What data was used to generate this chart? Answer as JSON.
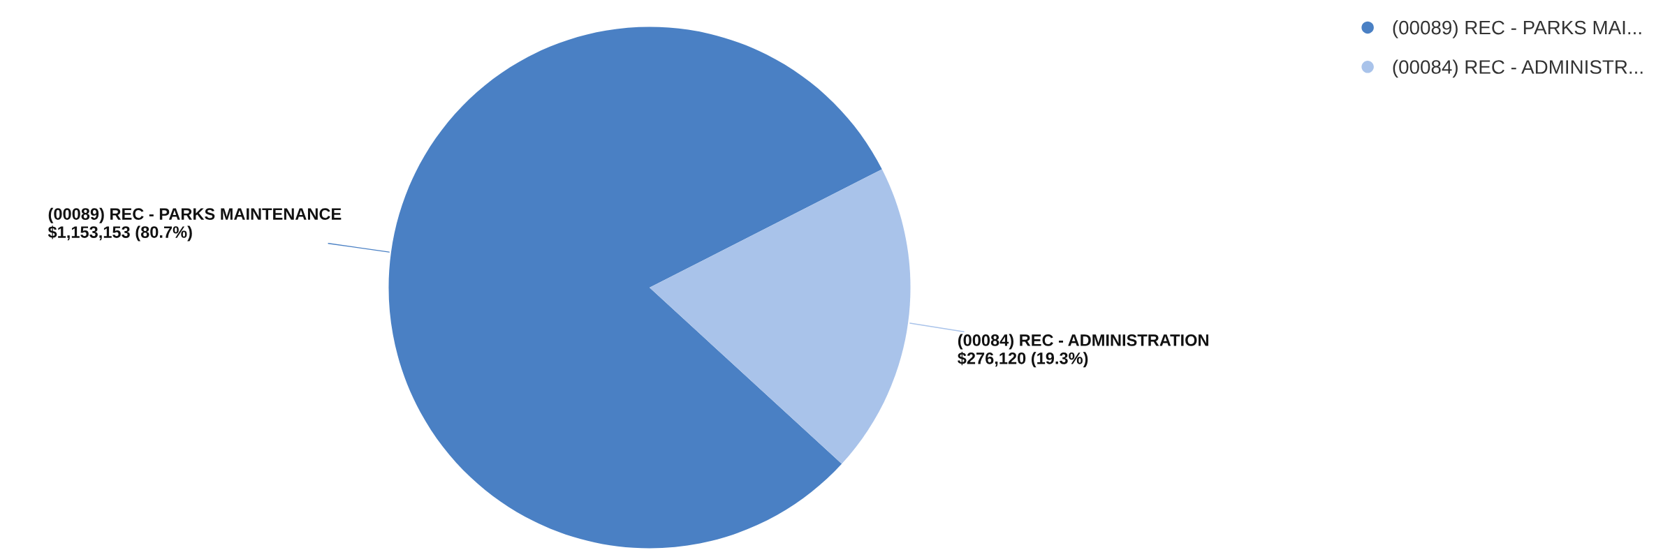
{
  "chart_data": {
    "type": "pie",
    "categories": [
      "(00089) REC - PARKS MAINTENANCE",
      "(00084) REC - ADMINISTRATION"
    ],
    "values": [
      1153153,
      276120
    ],
    "colors": [
      "#4a80c4",
      "#a9c3ea"
    ],
    "value_labels": [
      "$1,153,153 (80.7%)",
      "$276,120 (19.3%)"
    ],
    "annotations": [
      "(00089) REC - PARKS MAI...",
      "(00084) REC - ADMINISTR..."
    ]
  }
}
